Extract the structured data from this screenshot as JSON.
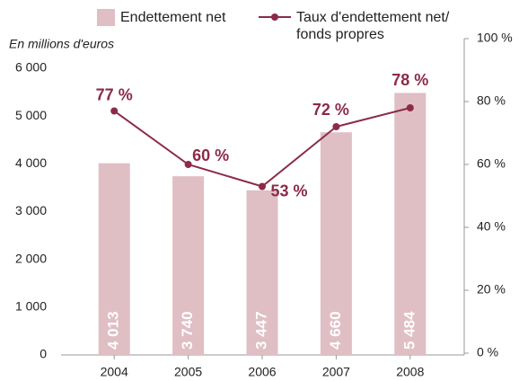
{
  "chart_data": {
    "type": "bar",
    "y_axis_label": "En millions d'euros",
    "categories": [
      "2004",
      "2005",
      "2006",
      "2007",
      "2008"
    ],
    "series": [
      {
        "name": "Endettement net",
        "type": "bar",
        "color": "#dfbec4",
        "values": [
          4013,
          3740,
          3447,
          4660,
          5484
        ],
        "value_labels": [
          "4 013",
          "3 740",
          "3 447",
          "4 660",
          "5 484"
        ]
      },
      {
        "name": "Taux d'endettement net/ fonds propres",
        "type": "line",
        "axis": "y2",
        "color": "#8b2b48",
        "values": [
          77,
          60,
          53,
          72,
          78
        ],
        "value_labels": [
          "77 %",
          "60 %",
          "53 %",
          "72 %",
          "78 %"
        ]
      }
    ],
    "ylim": [
      0,
      6000
    ],
    "yticks": [
      0,
      {
        "value": 1000,
        "label": "1 000"
      },
      {
        "value": 2000,
        "label": "2 000"
      },
      {
        "value": 3000,
        "label": "3 000"
      },
      {
        "value": 4000,
        "label": "4 000"
      },
      {
        "value": 5000,
        "label": "5 000"
      },
      {
        "value": 6000,
        "label": "6 000"
      }
    ],
    "y2lim": [
      0,
      100
    ],
    "y2ticks": [
      {
        "value": 0,
        "label": "0 %"
      },
      {
        "value": 20,
        "label": "20 %"
      },
      {
        "value": 40,
        "label": "40 %"
      },
      {
        "value": 60,
        "label": "60 %"
      },
      {
        "value": 80,
        "label": "80 %"
      },
      {
        "value": 100,
        "label": "100 %"
      }
    ],
    "legend": "top"
  }
}
